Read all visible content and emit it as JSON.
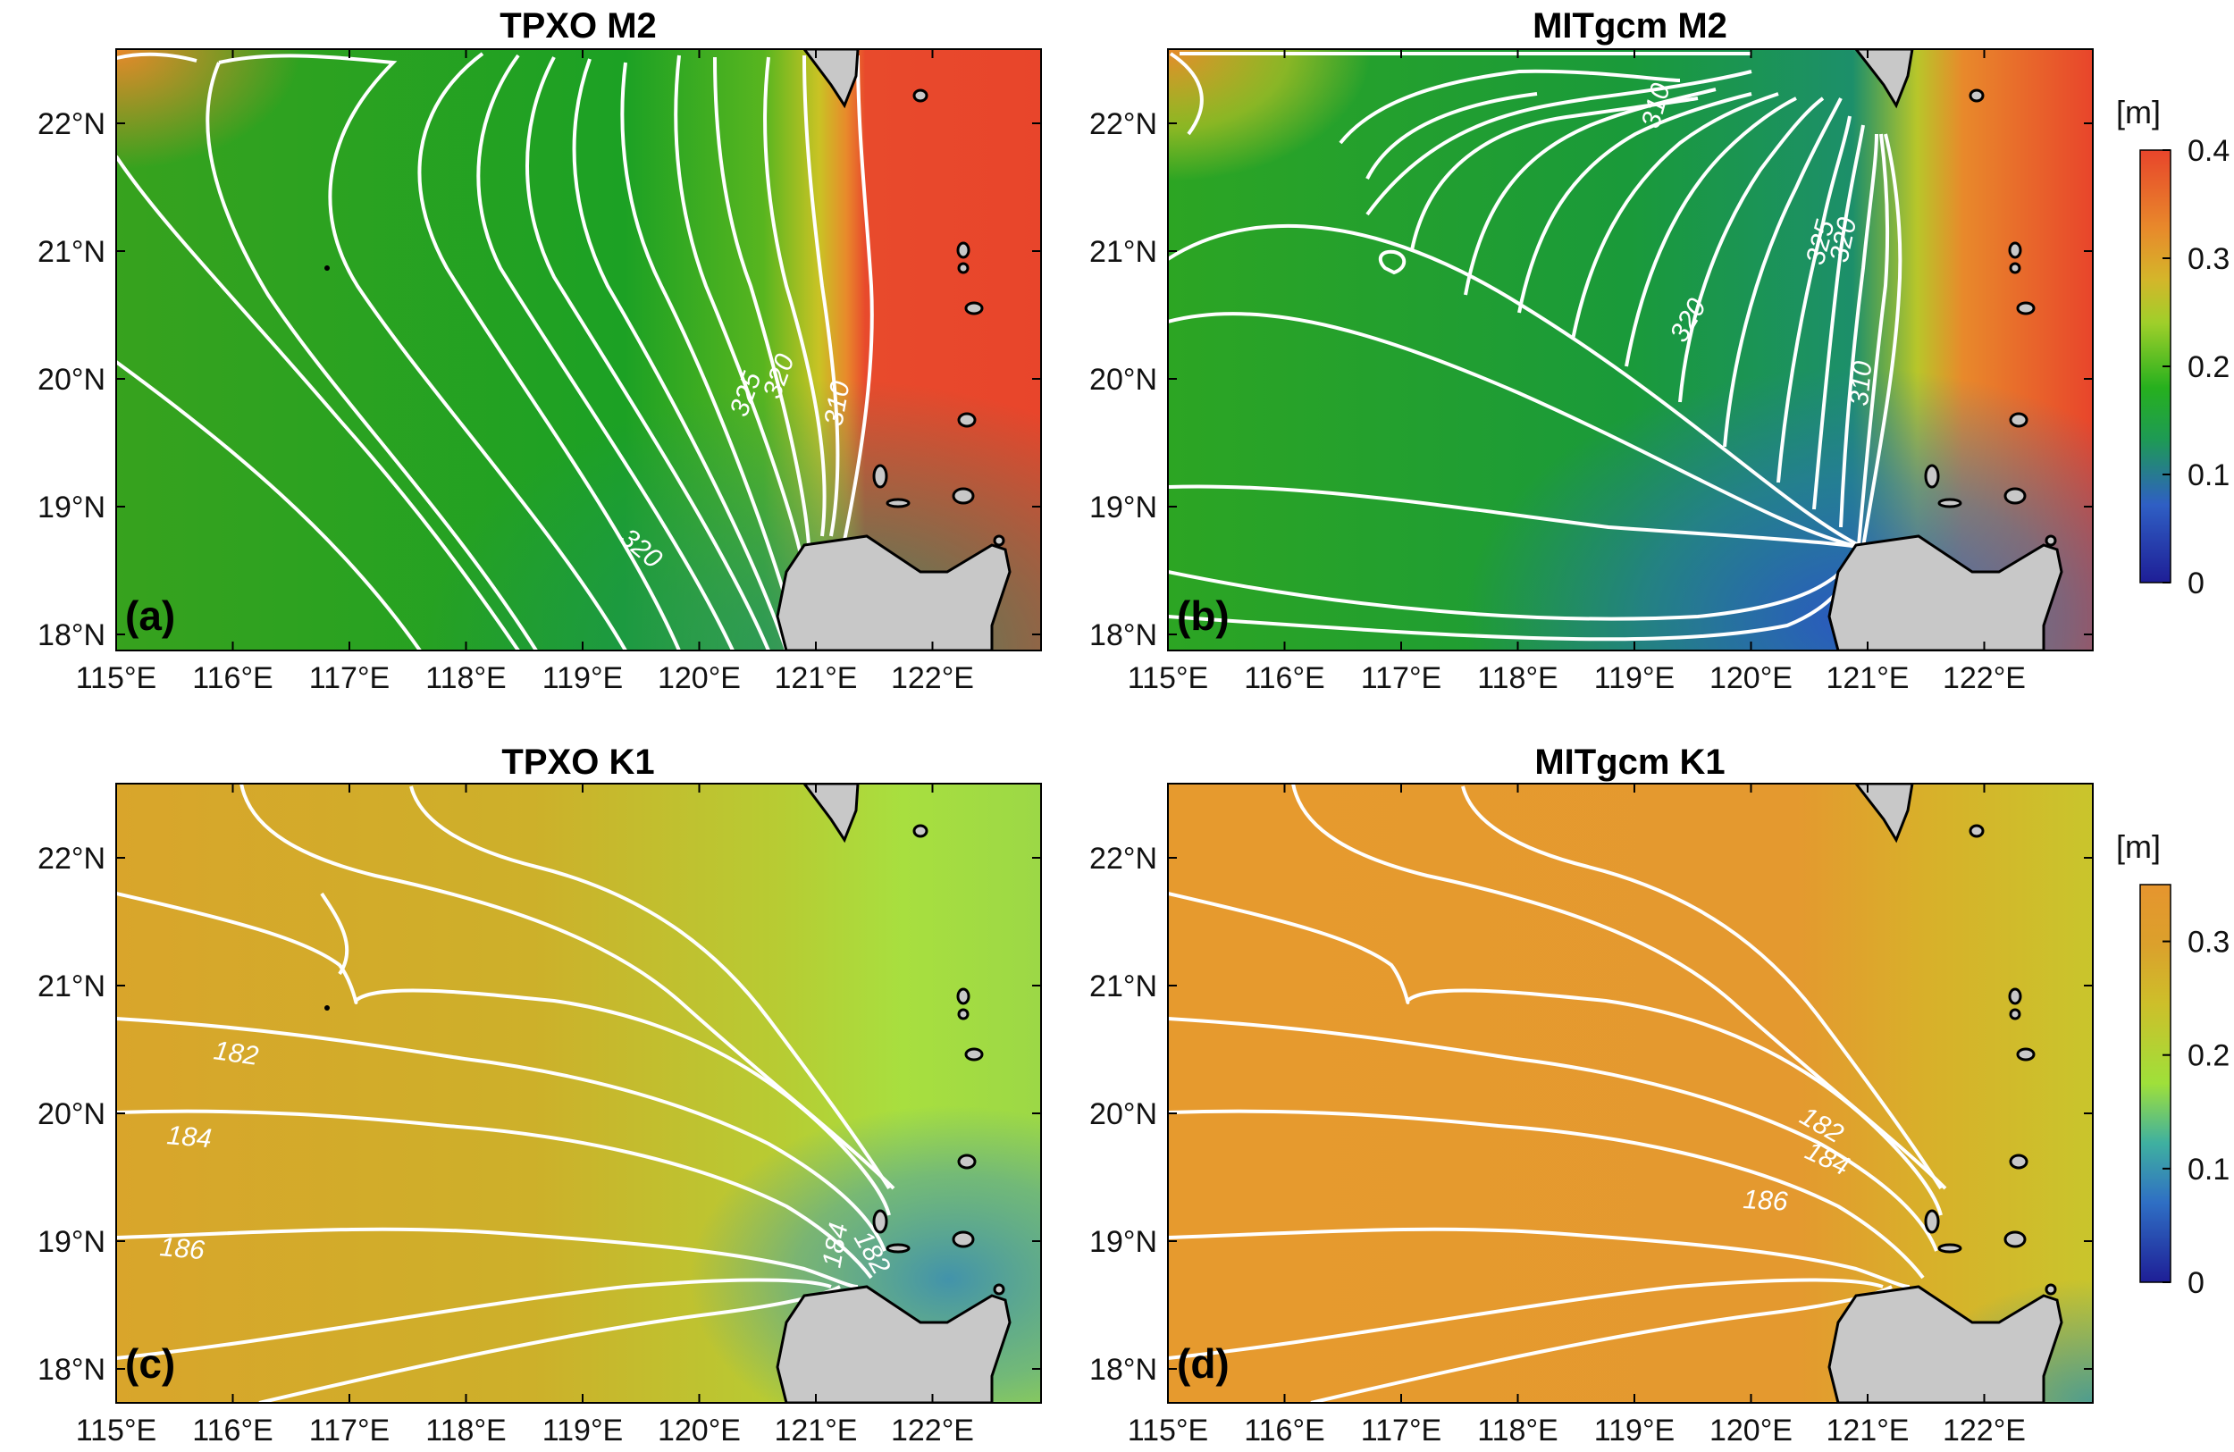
{
  "figure": {
    "panels": [
      {
        "id": "a",
        "title": "TPXO M2",
        "label": "(a)",
        "contour_labels": [
          "325",
          "320",
          "310",
          "320"
        ]
      },
      {
        "id": "b",
        "title": "MITgcm M2",
        "label": "(b)",
        "contour_labels": [
          "310",
          "325",
          "320",
          "320",
          "310"
        ]
      },
      {
        "id": "c",
        "title": "TPXO K1",
        "label": "(c)",
        "contour_labels": [
          "182",
          "184",
          "186",
          "182",
          "184"
        ]
      },
      {
        "id": "d",
        "title": "MITgcm K1",
        "label": "(d)",
        "contour_labels": [
          "182",
          "184",
          "186"
        ]
      }
    ],
    "x_ticks": [
      "115°E",
      "116°E",
      "117°E",
      "118°E",
      "119°E",
      "120°E",
      "121°E",
      "122°E"
    ],
    "y_ticks": [
      "22°N",
      "21°N",
      "20°N",
      "19°N",
      "18°N"
    ],
    "colorbars": [
      {
        "unit": "[m]",
        "ticks": [
          "0.4",
          "0.3",
          "0.2",
          "0.1",
          "0"
        ],
        "range": [
          0,
          0.4
        ],
        "colormap": "parula-red"
      },
      {
        "unit": "[m]",
        "ticks": [
          "0.3",
          "0.2",
          "0.1",
          "0"
        ],
        "range": [
          0,
          0.35
        ],
        "colormap": "parula-red"
      }
    ],
    "colors": {
      "land": "#c8c8c8",
      "coastline": "#000000",
      "contour": "#ffffff",
      "m2_low": "#2a2a9c",
      "m2_mid": "#17a81e",
      "m2_high": "#e8452b",
      "k1_orange": "#e69a2e",
      "k1_yellow": "#cdb325",
      "k1_green": "#a9df3f",
      "k1_teal": "#4f9aa2"
    }
  }
}
